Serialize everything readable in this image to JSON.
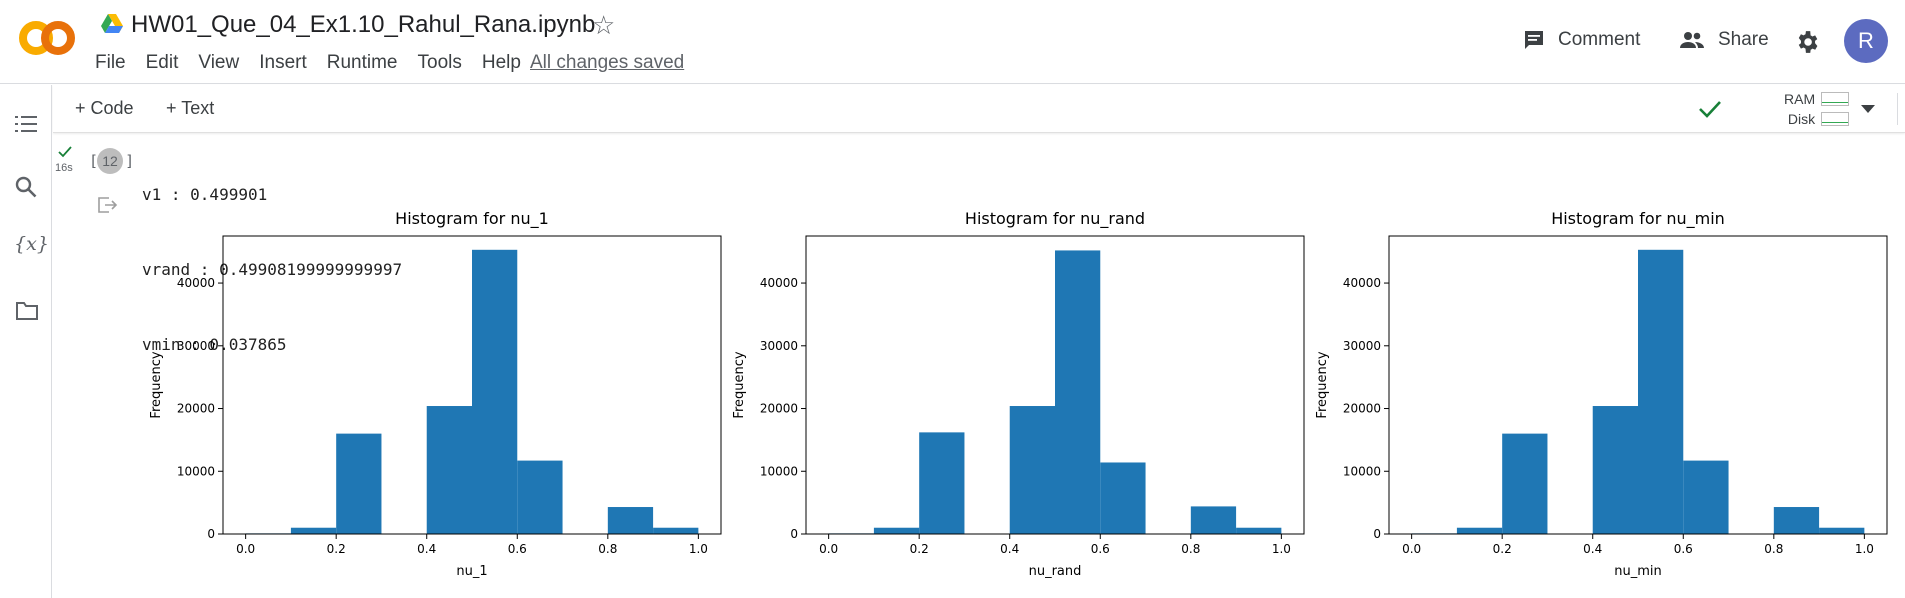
{
  "app": {
    "notebook_title": "HW01_Que_04_Ex1.10_Rahul_Rana.ipynb",
    "menu": [
      "File",
      "Edit",
      "View",
      "Insert",
      "Runtime",
      "Tools",
      "Help"
    ],
    "save_status": "All changes saved",
    "comment_label": "Comment",
    "share_label": "Share",
    "avatar_initial": "R"
  },
  "toolbar": {
    "add_code": "+ Code",
    "add_text": "+ Text",
    "ram_label": "RAM",
    "disk_label": "Disk"
  },
  "cell": {
    "exec_count": "12",
    "exec_time": "16s",
    "output_lines": [
      "v1 : 0.499901",
      "vrand : 0.49908199999999997",
      "vmin : 0.037865"
    ]
  },
  "colors": {
    "bar": "#1f77b4",
    "accent_green": "#188038",
    "avatar": "#5c6bc0"
  },
  "chart_data": [
    {
      "type": "bar",
      "title": "Histogram for nu_1",
      "xlabel": "nu_1",
      "ylabel": "Frequency",
      "bin_edges": [
        0.0,
        0.1,
        0.2,
        0.3,
        0.4,
        0.5,
        0.6,
        0.7,
        0.8,
        0.9,
        1.0
      ],
      "values": [
        100,
        1000,
        16000,
        0,
        20400,
        45300,
        11700,
        0,
        4300,
        1000
      ],
      "xlim": [
        -0.05,
        1.05
      ],
      "ylim": [
        0,
        47500
      ],
      "xticks": [
        "0.0",
        "0.2",
        "0.4",
        "0.6",
        "0.8",
        "1.0"
      ],
      "yticks": [
        0,
        10000,
        20000,
        30000,
        40000
      ]
    },
    {
      "type": "bar",
      "title": "Histogram for nu_rand",
      "xlabel": "nu_rand",
      "ylabel": "Frequency",
      "bin_edges": [
        0.0,
        0.1,
        0.2,
        0.3,
        0.4,
        0.5,
        0.6,
        0.7,
        0.8,
        0.9,
        1.0
      ],
      "values": [
        100,
        1000,
        16200,
        0,
        20400,
        45200,
        11400,
        0,
        4400,
        1000
      ],
      "xlim": [
        -0.05,
        1.05
      ],
      "ylim": [
        0,
        47500
      ],
      "xticks": [
        "0.0",
        "0.2",
        "0.4",
        "0.6",
        "0.8",
        "1.0"
      ],
      "yticks": [
        0,
        10000,
        20000,
        30000,
        40000
      ]
    },
    {
      "type": "bar",
      "title": "Histogram for nu_min",
      "xlabel": "nu_min",
      "ylabel": "Frequency",
      "bin_edges": [
        0.0,
        0.1,
        0.2,
        0.3,
        0.4,
        0.5,
        0.6,
        0.7,
        0.8,
        0.9,
        1.0
      ],
      "values": [
        100,
        1000,
        16000,
        0,
        20400,
        45300,
        11700,
        0,
        4300,
        1000
      ],
      "xlim": [
        -0.05,
        1.05
      ],
      "ylim": [
        0,
        47500
      ],
      "xticks": [
        "0.0",
        "0.2",
        "0.4",
        "0.6",
        "0.8",
        "1.0"
      ],
      "yticks": [
        0,
        10000,
        20000,
        30000,
        40000
      ]
    }
  ]
}
